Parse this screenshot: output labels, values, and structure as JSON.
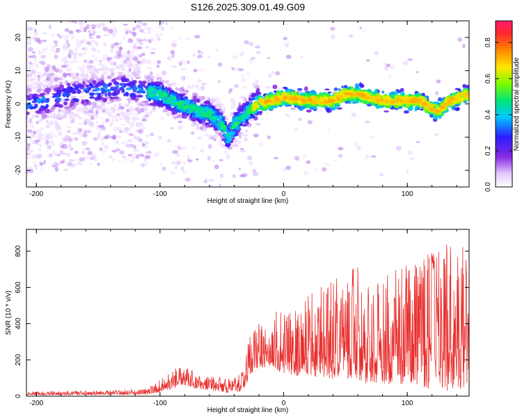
{
  "figure": {
    "title": "S126.2025.309.01.49.G09"
  },
  "chart_data": [
    {
      "type": "heatmap",
      "xlabel": "Height of straight line (km)",
      "ylabel": "Frequency (Hz)",
      "xlim": [
        -208,
        150
      ],
      "ylim": [
        -25,
        25
      ],
      "xticks": [
        -200,
        -100,
        0,
        100
      ],
      "yticks": [
        -20,
        -10,
        0,
        10,
        20
      ],
      "ridge": {
        "x": [
          -208,
          -190,
          -170,
          -150,
          -130,
          -115,
          -100,
          -85,
          -70,
          -60,
          -50,
          -45,
          -40,
          -35,
          -30,
          -25,
          -22,
          -15,
          0,
          20,
          40,
          50,
          60,
          80,
          95,
          110,
          118,
          125,
          135,
          150
        ],
        "y": [
          0,
          1,
          3,
          4,
          5,
          4,
          3,
          0,
          -2,
          -3,
          -6,
          -10,
          -7,
          -4,
          -3,
          -1,
          0,
          0.5,
          2,
          1,
          1,
          3,
          3,
          1,
          1,
          1,
          -1,
          -2,
          1,
          3
        ]
      },
      "colorbar": {
        "label": "Normalized spectral amplitude",
        "ticks": [
          0.0,
          0.2,
          0.4,
          0.6,
          0.8
        ],
        "tick_labels": [
          "0.0",
          "0.2",
          "0.4",
          "0.6",
          "0.8"
        ],
        "range": [
          0,
          0.92
        ]
      }
    },
    {
      "type": "line",
      "xlabel": "Height of straight line (km)",
      "ylabel": "SNR (10 * v/v)",
      "xlim": [
        -208,
        150
      ],
      "ylim": [
        0,
        920
      ],
      "xticks": [
        -200,
        -100,
        0,
        100
      ],
      "yticks": [
        0,
        200,
        400,
        600,
        800
      ],
      "color": "#e8302e",
      "envelope": {
        "x": [
          -208,
          -150,
          -110,
          -100,
          -90,
          -80,
          -70,
          -60,
          -45,
          -35,
          -30,
          -28,
          -25,
          -20,
          -15,
          -10,
          -5,
          0,
          10,
          20,
          30,
          40,
          50,
          60,
          70,
          80,
          90,
          100,
          110,
          120,
          130,
          140,
          150
        ],
        "low": [
          5,
          8,
          10,
          20,
          40,
          60,
          40,
          30,
          20,
          25,
          60,
          100,
          130,
          160,
          150,
          170,
          140,
          120,
          110,
          120,
          100,
          90,
          80,
          90,
          60,
          70,
          60,
          70,
          40,
          40,
          30,
          30,
          60
        ],
        "high": [
          25,
          30,
          40,
          90,
          150,
          160,
          130,
          110,
          100,
          130,
          250,
          350,
          460,
          430,
          380,
          420,
          480,
          520,
          480,
          580,
          600,
          640,
          700,
          720,
          620,
          660,
          700,
          740,
          760,
          800,
          880,
          860,
          800
        ]
      }
    }
  ]
}
